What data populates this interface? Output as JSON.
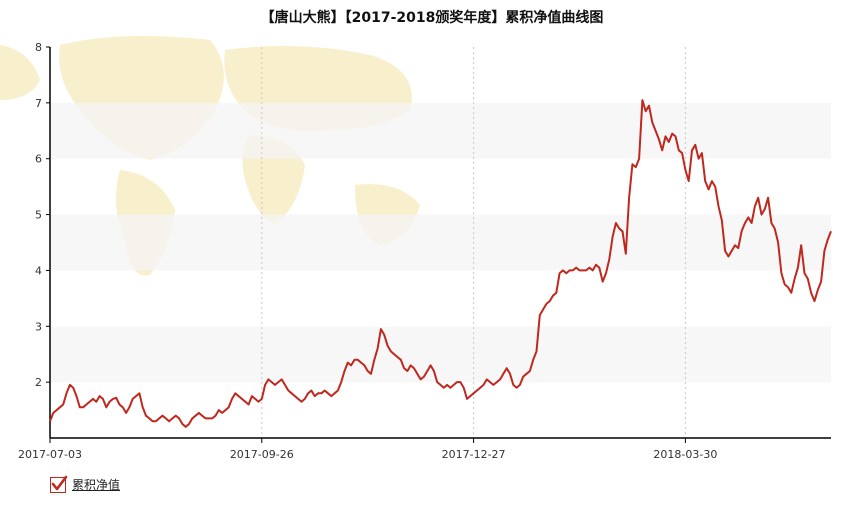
{
  "chart_data": {
    "type": "line",
    "title": "【唐山大熊】【2017-2018颁奖年度】累积净值曲线图",
    "ylim": [
      1,
      8
    ],
    "yticks": [
      "2",
      "3",
      "4",
      "5",
      "6",
      "7",
      "8"
    ],
    "xtick_labels": [
      "2017-07-03",
      "2017-09-26",
      "2017-12-27",
      "2018-03-30"
    ],
    "xtick_positions": [
      0,
      64,
      128,
      192
    ],
    "series": [
      {
        "name": "累积净值",
        "color": "#c0281e",
        "values": [
          1.3,
          1.45,
          1.5,
          1.55,
          1.6,
          1.8,
          1.95,
          1.9,
          1.75,
          1.55,
          1.55,
          1.6,
          1.65,
          1.7,
          1.65,
          1.75,
          1.7,
          1.55,
          1.65,
          1.7,
          1.72,
          1.6,
          1.55,
          1.45,
          1.55,
          1.7,
          1.75,
          1.8,
          1.55,
          1.4,
          1.35,
          1.3,
          1.3,
          1.35,
          1.4,
          1.35,
          1.3,
          1.35,
          1.4,
          1.35,
          1.25,
          1.2,
          1.25,
          1.35,
          1.4,
          1.45,
          1.4,
          1.35,
          1.35,
          1.35,
          1.4,
          1.5,
          1.45,
          1.5,
          1.55,
          1.7,
          1.8,
          1.75,
          1.7,
          1.65,
          1.6,
          1.75,
          1.7,
          1.65,
          1.7,
          1.95,
          2.05,
          2.0,
          1.95,
          2.0,
          2.05,
          1.95,
          1.85,
          1.8,
          1.75,
          1.7,
          1.65,
          1.7,
          1.8,
          1.85,
          1.75,
          1.8,
          1.8,
          1.85,
          1.8,
          1.75,
          1.8,
          1.85,
          2.0,
          2.2,
          2.35,
          2.3,
          2.4,
          2.4,
          2.35,
          2.3,
          2.2,
          2.15,
          2.4,
          2.6,
          2.95,
          2.85,
          2.65,
          2.55,
          2.5,
          2.45,
          2.4,
          2.25,
          2.2,
          2.3,
          2.25,
          2.15,
          2.05,
          2.1,
          2.2,
          2.3,
          2.2,
          2.0,
          1.95,
          1.9,
          1.95,
          1.9,
          1.95,
          2.0,
          2.0,
          1.9,
          1.7,
          1.75,
          1.8,
          1.85,
          1.9,
          1.95,
          2.05,
          2.0,
          1.95,
          2.0,
          2.05,
          2.15,
          2.25,
          2.15,
          1.95,
          1.9,
          1.95,
          2.1,
          2.15,
          2.2,
          2.4,
          2.55,
          3.2,
          3.3,
          3.4,
          3.45,
          3.55,
          3.6,
          3.95,
          4.0,
          3.95,
          4.0,
          4.0,
          4.05,
          4.0,
          4.0,
          4.0,
          4.05,
          4.0,
          4.1,
          4.05,
          3.8,
          3.95,
          4.2,
          4.6,
          4.85,
          4.75,
          4.7,
          4.3,
          5.3,
          5.9,
          5.85,
          6.0,
          7.05,
          6.85,
          6.95,
          6.65,
          6.5,
          6.35,
          6.15,
          6.4,
          6.3,
          6.45,
          6.4,
          6.15,
          6.1,
          5.8,
          5.6,
          6.15,
          6.25,
          6.0,
          6.1,
          5.6,
          5.45,
          5.6,
          5.5,
          5.15,
          4.9,
          4.35,
          4.25,
          4.35,
          4.45,
          4.4,
          4.7,
          4.85,
          4.95,
          4.85,
          5.15,
          5.3,
          5.0,
          5.1,
          5.3,
          4.85,
          4.75,
          4.5,
          3.95,
          3.75,
          3.7,
          3.6,
          3.85,
          4.05,
          4.45,
          3.95,
          3.85,
          3.6,
          3.45,
          3.65,
          3.8,
          4.35,
          4.55,
          4.7
        ]
      }
    ]
  }
}
